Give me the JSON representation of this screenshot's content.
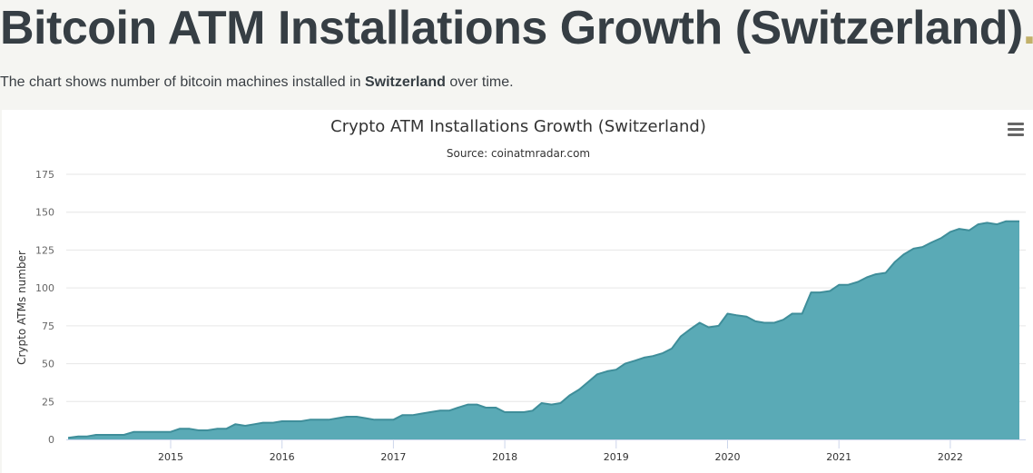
{
  "page": {
    "title": "Bitcoin ATM Installations Growth (Switzerland)",
    "title_dot": ".",
    "description_prefix": "The chart shows number of bitcoin machines installed in ",
    "description_bold": "Switzerland",
    "description_suffix": " over time."
  },
  "chart_menu": {
    "icon": "hamburger-menu-icon"
  },
  "colors": {
    "area_fill": "#5aaab6",
    "area_line": "#3f8e9a",
    "grid": "#e6e6e6",
    "title_dot": "#c2b16a"
  },
  "chart_data": {
    "type": "area",
    "title": "Crypto ATM Installations Growth (Switzerland)",
    "subtitle": "Source: coinatmradar.com",
    "xlabel": "",
    "ylabel": "Crypto ATMs number",
    "ylim": [
      0,
      175
    ],
    "xlim": [
      2014.0,
      2022.75
    ],
    "y_ticks": [
      0,
      25,
      50,
      75,
      100,
      125,
      150,
      175
    ],
    "x_ticks": [
      2015,
      2016,
      2017,
      2018,
      2019,
      2020,
      2021,
      2022
    ],
    "grid": true,
    "legend": "none",
    "series": [
      {
        "name": "Crypto ATMs",
        "points": [
          [
            2014.08,
            1
          ],
          [
            2014.17,
            2
          ],
          [
            2014.25,
            2
          ],
          [
            2014.33,
            3
          ],
          [
            2014.42,
            3
          ],
          [
            2014.5,
            3
          ],
          [
            2014.58,
            3
          ],
          [
            2014.67,
            5
          ],
          [
            2014.75,
            5
          ],
          [
            2014.83,
            5
          ],
          [
            2014.92,
            5
          ],
          [
            2015.0,
            5
          ],
          [
            2015.08,
            7
          ],
          [
            2015.17,
            7
          ],
          [
            2015.25,
            6
          ],
          [
            2015.33,
            6
          ],
          [
            2015.42,
            7
          ],
          [
            2015.5,
            7
          ],
          [
            2015.58,
            10
          ],
          [
            2015.67,
            9
          ],
          [
            2015.75,
            10
          ],
          [
            2015.83,
            11
          ],
          [
            2015.92,
            11
          ],
          [
            2016.0,
            12
          ],
          [
            2016.08,
            12
          ],
          [
            2016.17,
            12
          ],
          [
            2016.25,
            13
          ],
          [
            2016.33,
            13
          ],
          [
            2016.42,
            13
          ],
          [
            2016.5,
            14
          ],
          [
            2016.58,
            15
          ],
          [
            2016.67,
            15
          ],
          [
            2016.75,
            14
          ],
          [
            2016.83,
            13
          ],
          [
            2016.92,
            13
          ],
          [
            2017.0,
            13
          ],
          [
            2017.08,
            16
          ],
          [
            2017.17,
            16
          ],
          [
            2017.25,
            17
          ],
          [
            2017.33,
            18
          ],
          [
            2017.42,
            19
          ],
          [
            2017.5,
            19
          ],
          [
            2017.58,
            21
          ],
          [
            2017.67,
            23
          ],
          [
            2017.75,
            23
          ],
          [
            2017.83,
            21
          ],
          [
            2017.92,
            21
          ],
          [
            2018.0,
            18
          ],
          [
            2018.08,
            18
          ],
          [
            2018.17,
            18
          ],
          [
            2018.25,
            19
          ],
          [
            2018.33,
            24
          ],
          [
            2018.42,
            23
          ],
          [
            2018.5,
            24
          ],
          [
            2018.58,
            29
          ],
          [
            2018.67,
            33
          ],
          [
            2018.75,
            38
          ],
          [
            2018.83,
            43
          ],
          [
            2018.92,
            45
          ],
          [
            2019.0,
            46
          ],
          [
            2019.08,
            50
          ],
          [
            2019.17,
            52
          ],
          [
            2019.25,
            54
          ],
          [
            2019.33,
            55
          ],
          [
            2019.42,
            57
          ],
          [
            2019.5,
            60
          ],
          [
            2019.58,
            68
          ],
          [
            2019.67,
            73
          ],
          [
            2019.75,
            77
          ],
          [
            2019.83,
            74
          ],
          [
            2019.92,
            75
          ],
          [
            2020.0,
            83
          ],
          [
            2020.08,
            82
          ],
          [
            2020.17,
            81
          ],
          [
            2020.25,
            78
          ],
          [
            2020.33,
            77
          ],
          [
            2020.42,
            77
          ],
          [
            2020.5,
            79
          ],
          [
            2020.58,
            83
          ],
          [
            2020.67,
            83
          ],
          [
            2020.75,
            97
          ],
          [
            2020.83,
            97
          ],
          [
            2020.92,
            98
          ],
          [
            2021.0,
            102
          ],
          [
            2021.08,
            102
          ],
          [
            2021.17,
            104
          ],
          [
            2021.25,
            107
          ],
          [
            2021.33,
            109
          ],
          [
            2021.42,
            110
          ],
          [
            2021.5,
            117
          ],
          [
            2021.58,
            122
          ],
          [
            2021.67,
            126
          ],
          [
            2021.75,
            127
          ],
          [
            2021.83,
            130
          ],
          [
            2021.92,
            133
          ],
          [
            2022.0,
            137
          ],
          [
            2022.08,
            139
          ],
          [
            2022.17,
            138
          ],
          [
            2022.25,
            142
          ],
          [
            2022.33,
            143
          ],
          [
            2022.42,
            142
          ],
          [
            2022.5,
            144
          ],
          [
            2022.58,
            144
          ],
          [
            2022.62,
            144
          ]
        ]
      }
    ]
  }
}
